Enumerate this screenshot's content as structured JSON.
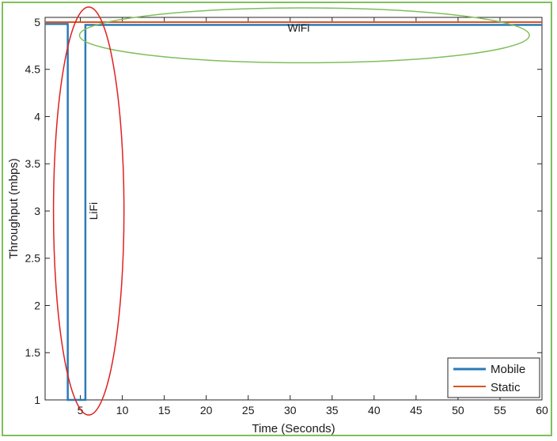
{
  "chart_data": {
    "type": "line",
    "xlabel": "Time (Seconds)",
    "ylabel": "Throughput (mbps)",
    "xlim": [
      0.8,
      60
    ],
    "ylim": [
      1,
      5.05
    ],
    "xticks": [
      5,
      10,
      15,
      20,
      25,
      30,
      35,
      40,
      45,
      50,
      55,
      60
    ],
    "yticks": [
      1,
      1.5,
      2,
      2.5,
      3,
      3.5,
      4,
      4.5,
      5
    ],
    "ytick_labels": [
      "1",
      "1.5",
      "2",
      "2.5",
      "3",
      "3.5",
      "4",
      "4.5",
      "5"
    ],
    "grid": false,
    "legend_position": "bottom-right",
    "series": [
      {
        "name": "Mobile",
        "color": "#2a7ab8",
        "x": [
          0.8,
          3.5,
          3.5,
          5.6,
          5.6,
          60
        ],
        "y": [
          4.98,
          4.98,
          1.0,
          1.0,
          4.97,
          4.97
        ]
      },
      {
        "name": "Static",
        "color": "#d9541e",
        "x": [
          0.8,
          60
        ],
        "y": [
          5.0,
          5.0
        ]
      }
    ],
    "annotations": [
      {
        "text": "WiFi",
        "x": 31,
        "y": 4.9,
        "rotation": 0
      },
      {
        "text": "LiFi",
        "x": 7,
        "y": 3.0,
        "rotation": -90
      }
    ],
    "highlight_ellipses": [
      {
        "label": "wifi-region",
        "color": "#7fbf5a",
        "cx": 31.7,
        "cy": 4.86,
        "rx": 26.8,
        "ry": 0.29
      },
      {
        "label": "lifi-region",
        "color": "#e02020",
        "cx": 6.0,
        "cy": 3.0,
        "rx": 4.2,
        "ry": 2.16
      }
    ]
  }
}
